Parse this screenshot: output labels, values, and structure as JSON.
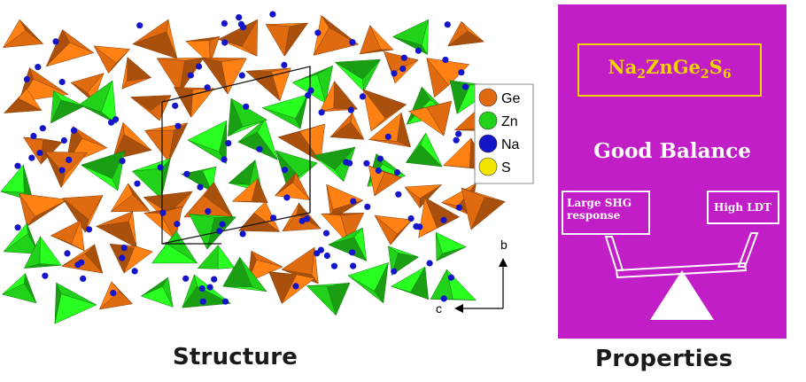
{
  "structure_caption": "Structure",
  "properties_caption": "Properties",
  "legend": [
    {
      "label": "Ge",
      "color": "#e06a10"
    },
    {
      "label": "Zn",
      "color": "#22d21a"
    },
    {
      "label": "Na",
      "color": "#1414c8"
    },
    {
      "label": "S",
      "color": "#f2e600"
    }
  ],
  "axes": {
    "b": "b",
    "c": "c"
  },
  "properties": {
    "formula_parts": [
      [
        "Na",
        "n"
      ],
      [
        "2",
        "s"
      ],
      [
        "ZnGe",
        "n"
      ],
      [
        "2",
        "s"
      ],
      [
        "S",
        "n"
      ],
      [
        "6",
        "s"
      ]
    ],
    "balance": "Good Balance",
    "left_box_line1": "Large SHG",
    "left_box_line2": "response",
    "right_box": "High LDT"
  },
  "colors": {
    "panel": "#c21ec8",
    "formula": "#f2d400",
    "ge": "#e06a10",
    "zn": "#22d21a",
    "na": "#1414c8"
  }
}
